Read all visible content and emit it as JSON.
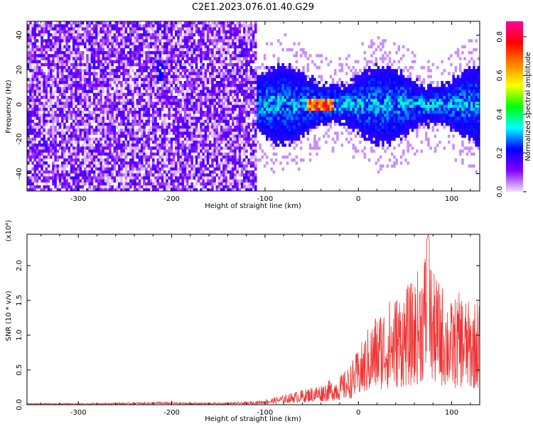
{
  "title": "C2E1.2023.076.01.40.G29",
  "chart_data": [
    {
      "type": "heatmap",
      "xlabel": "Height of straight line (km)",
      "ylabel": "Frequency (Hz)",
      "xlim": [
        -355,
        130
      ],
      "ylim": [
        -50,
        48
      ],
      "xticks": [
        -300,
        -200,
        -100,
        0,
        100
      ],
      "yticks": [
        -40,
        -20,
        0,
        20,
        40
      ],
      "colorbar": {
        "label": "Normalized spectral amplitude",
        "range": [
          0.0,
          0.88
        ],
        "ticks": [
          "0.0",
          "0.2",
          "0.4",
          "0.6",
          "0.8"
        ],
        "tick_values": [
          0.0,
          0.2,
          0.4,
          0.6,
          0.8
        ],
        "colors": [
          "#f0e0ff",
          "#8000ff",
          "#0000ff",
          "#00ffff",
          "#00ff00",
          "#ffff00",
          "#ff8000",
          "#ff0000",
          "#ff00a0"
        ]
      },
      "regions": [
        {
          "x_range": [
            -355,
            -110
          ],
          "freq_range": [
            -50,
            48
          ],
          "level": "low, dense noise over full band"
        },
        {
          "x_range": [
            -110,
            130
          ],
          "freq_range": [
            -25,
            25
          ],
          "level": "signal concentrated near 0 Hz"
        },
        {
          "x_range": [
            -55,
            -25
          ],
          "freq_range": [
            -5,
            5
          ],
          "peak_amplitude": 0.8
        }
      ]
    },
    {
      "type": "line",
      "xlabel": "Height of straight line (km)",
      "ylabel": "SNR (10 * v/v)",
      "multiplier": "(x10⁴)",
      "xlim": [
        -355,
        130
      ],
      "ylim": [
        0,
        2.45
      ],
      "xticks": [
        -300,
        -200,
        -100,
        0,
        100
      ],
      "yticks": [
        "0.0",
        "0.5",
        "1.0",
        "1.5",
        "2.0"
      ],
      "ytick_values": [
        0.0,
        0.5,
        1.0,
        1.5,
        2.0
      ],
      "color": "#ee3333",
      "envelope": {
        "x": [
          -355,
          -300,
          -250,
          -210,
          -180,
          -150,
          -120,
          -100,
          -80,
          -60,
          -40,
          -20,
          -10,
          0,
          10,
          20,
          30,
          40,
          60,
          75,
          80,
          90,
          100,
          110,
          120,
          130
        ],
        "y": [
          0.02,
          0.02,
          0.03,
          0.04,
          0.03,
          0.03,
          0.04,
          0.07,
          0.14,
          0.22,
          0.3,
          0.42,
          0.55,
          0.8,
          1.1,
          1.35,
          1.5,
          1.6,
          1.8,
          2.45,
          1.9,
          1.75,
          1.5,
          1.65,
          1.45,
          1.6
        ]
      }
    }
  ]
}
